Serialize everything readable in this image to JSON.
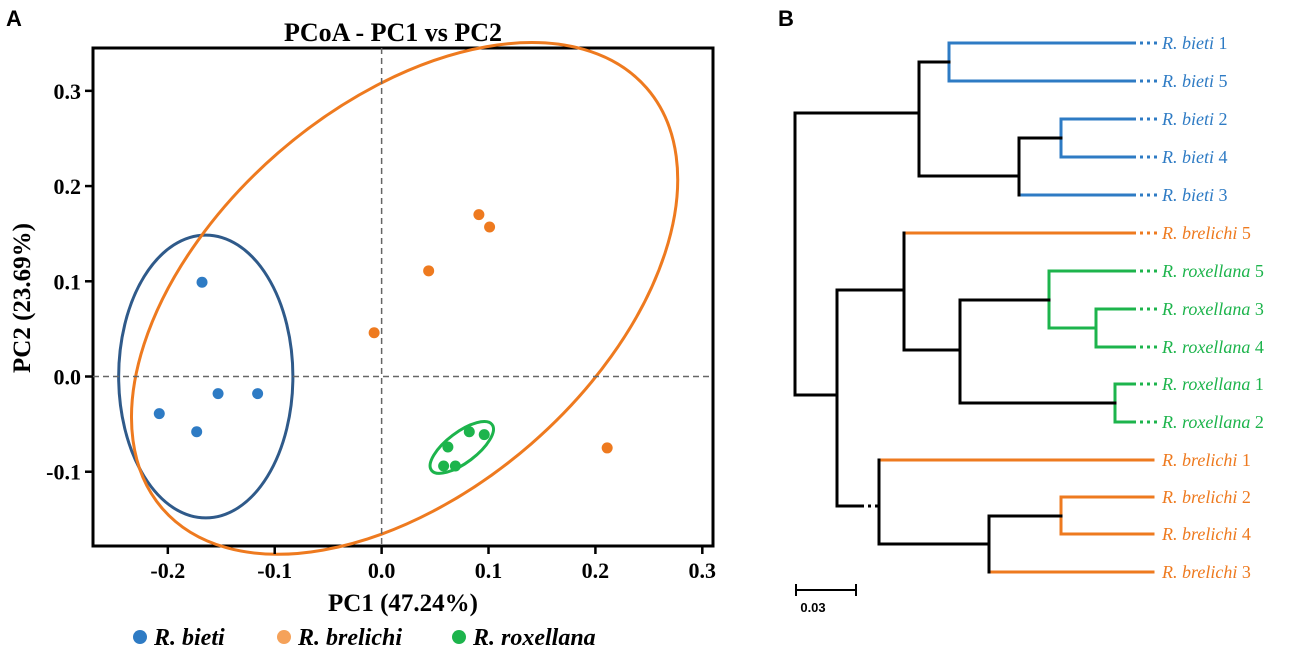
{
  "panels": {
    "a": {
      "letter": "A"
    },
    "b": {
      "letter": "B"
    }
  },
  "colors": {
    "bieti": "#2E7BC4",
    "brelichi": "#EE7A1F",
    "roxellana": "#1DB44C",
    "ellipse_bieti": "#2F5A8A",
    "ellipse_brelichi": "#EE7A1F",
    "ellipse_roxellana": "#1DB44C",
    "tree": "#000000",
    "legend_brelichi_dot": "#F5A25A"
  },
  "chart_data": [
    {
      "type": "scatter",
      "title": "PCoA - PC1 vs PC2",
      "xlabel": "PC1 (47.24%)",
      "ylabel": "PC2 (23.69%)",
      "xlim": [
        -0.27,
        0.31
      ],
      "ylim": [
        -0.178,
        0.345
      ],
      "x_ticks": [
        -0.2,
        -0.1,
        0.0,
        0.1,
        0.2,
        0.3
      ],
      "x_tick_labels": [
        "-0.2",
        "-0.1",
        "0.0",
        "0.1",
        "0.2",
        "0.3"
      ],
      "y_ticks": [
        -0.1,
        0.0,
        0.1,
        0.2,
        0.3
      ],
      "y_tick_labels": [
        "-0.1",
        "0.0",
        "0.1",
        "0.2",
        "0.3"
      ],
      "reference_lines": {
        "x": 0.0,
        "y": 0.0,
        "style": "dashed"
      },
      "series": [
        {
          "name": "R. bieti",
          "color_key": "bieti",
          "x": [
            -0.168,
            -0.153,
            -0.116,
            -0.208,
            -0.173
          ],
          "y": [
            0.099,
            -0.018,
            -0.018,
            -0.039,
            -0.058
          ]
        },
        {
          "name": "R. brelichi",
          "color_key": "brelichi",
          "x": [
            0.091,
            0.101,
            0.044,
            -0.007,
            0.211
          ],
          "y": [
            0.17,
            0.157,
            0.111,
            0.046,
            -0.075
          ]
        },
        {
          "name": "R. roxellana",
          "color_key": "roxellana",
          "x": [
            0.062,
            0.082,
            0.096,
            0.058,
            0.069
          ],
          "y": [
            -0.074,
            -0.058,
            -0.061,
            -0.094,
            -0.094
          ]
        }
      ],
      "ellipses": [
        {
          "group": "R. bieti",
          "color_key": "ellipse_bieti",
          "cx": -0.1645,
          "cy": 0.0,
          "rx": 0.0815,
          "ry": 0.1485,
          "angle_deg": 0
        },
        {
          "group": "R. brelichi",
          "color_key": "ellipse_brelichi",
          "cx": 0.0215,
          "cy": 0.082,
          "rx": 0.3,
          "ry": 0.2025,
          "angle_deg": 41
        },
        {
          "group": "R. roxellana",
          "color_key": "ellipse_roxellana",
          "cx": 0.075,
          "cy": -0.0745,
          "rx": 0.0355,
          "ry": 0.016,
          "angle_deg": 37
        }
      ],
      "legend": [
        {
          "label": "R. bieti",
          "color_key": "bieti"
        },
        {
          "label": "R. brelichi",
          "color_key": "legend_brelichi_dot"
        },
        {
          "label": "R. roxellana",
          "color_key": "roxellana"
        }
      ],
      "legend_position": "bottom"
    },
    {
      "type": "tree",
      "scale_bar_label": "0.03",
      "scale_bar_value": 0.03,
      "leaves": [
        {
          "name": "R. bieti",
          "suffix": " 1",
          "color_key": "bieti"
        },
        {
          "name": "R. bieti",
          "suffix": " 5",
          "color_key": "bieti"
        },
        {
          "name": "R. bieti",
          "suffix": " 2",
          "color_key": "bieti"
        },
        {
          "name": "R. bieti",
          "suffix": " 4",
          "color_key": "bieti"
        },
        {
          "name": "R. bieti",
          "suffix": " 3",
          "color_key": "bieti"
        },
        {
          "name": "R. brelichi",
          "suffix": " 5",
          "color_key": "brelichi"
        },
        {
          "name": "R. roxellana",
          "suffix": " 5",
          "color_key": "roxellana"
        },
        {
          "name": "R. roxellana",
          "suffix": " 3",
          "color_key": "roxellana"
        },
        {
          "name": "R. roxellana",
          "suffix": " 4",
          "color_key": "roxellana"
        },
        {
          "name": "R. roxellana",
          "suffix": " 1",
          "color_key": "roxellana"
        },
        {
          "name": "R. roxellana",
          "suffix": " 2",
          "color_key": "roxellana"
        },
        {
          "name": "R. brelichi",
          "suffix": " 1",
          "color_key": "brelichi"
        },
        {
          "name": "R. brelichi",
          "suffix": " 2",
          "color_key": "brelichi"
        },
        {
          "name": "R. brelichi",
          "suffix": " 4",
          "color_key": "brelichi"
        },
        {
          "name": "R. brelichi",
          "suffix": " 3",
          "color_key": "brelichi"
        }
      ]
    }
  ]
}
